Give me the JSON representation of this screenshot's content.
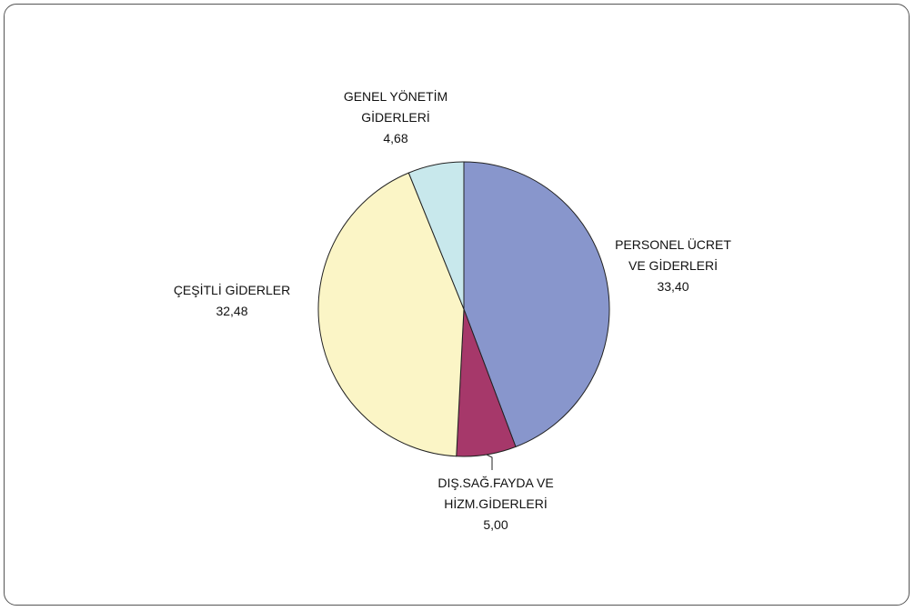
{
  "chart_data": {
    "type": "pie",
    "categories": [
      "PERSONEL ÜCRET VE GİDERLERİ",
      "DIŞ.SAĞ.FAYDA VE HİZM.GİDERLERİ",
      "ÇEŞİTLİ GİDERLER",
      "GENEL YÖNETİM GİDERLERİ"
    ],
    "values": [
      33.4,
      5.0,
      32.48,
      4.68
    ],
    "value_labels": [
      "33,40",
      "5,00",
      "32,48",
      "4,68"
    ],
    "colors": [
      "#8896cc",
      "#a6386a",
      "#fbf5c6",
      "#c8e8ec"
    ]
  }
}
